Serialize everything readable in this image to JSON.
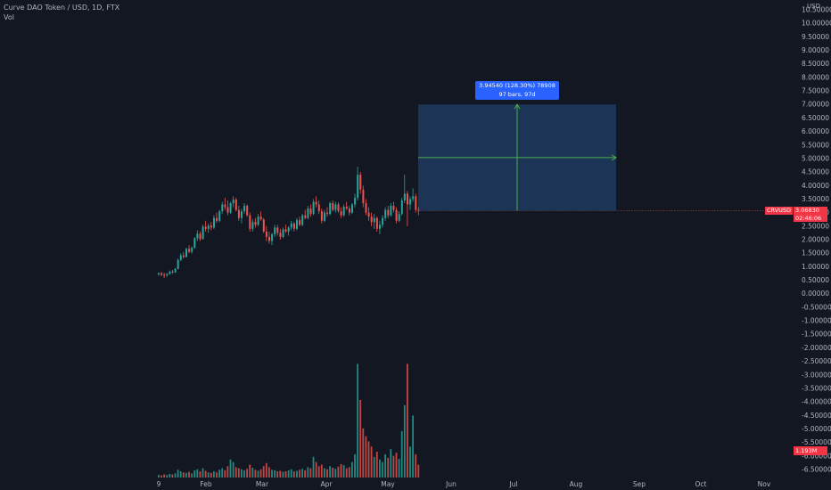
{
  "legend": {
    "title": "Curve DAO Token / USD, 1D, FTX",
    "vol_label": "Vol"
  },
  "axis": {
    "currency": "USD",
    "price_ticks": [
      "10.50000",
      "10.00000",
      "9.50000",
      "9.00000",
      "8.50000",
      "8.00000",
      "7.50000",
      "7.00000",
      "6.50000",
      "6.00000",
      "5.50000",
      "5.00000",
      "4.50000",
      "4.00000",
      "3.50000",
      "3.00000",
      "2.50000",
      "2.00000",
      "1.50000",
      "1.00000",
      "0.50000",
      "0.00000",
      "-0.50000",
      "-1.00000",
      "-1.50000",
      "-2.00000",
      "-2.50000",
      "-3.00000",
      "-3.50000",
      "-4.00000",
      "-4.50000",
      "-5.00000",
      "-5.50000",
      "-6.00000",
      "-6.50000"
    ],
    "time_ticks": [
      "9",
      "Feb",
      "Mar",
      "Apr",
      "May",
      "Jun",
      "Jul",
      "Aug",
      "Sep",
      "Oct",
      "Nov"
    ]
  },
  "price_tag": {
    "symbol": "CRVUSD",
    "price": "3.06830",
    "countdown": "02:46:06"
  },
  "volume_tag": {
    "value": "1.193M"
  },
  "measure_tooltip": {
    "line1": "3.94540 (128.30%) 78908",
    "line2": "97 bars, 97d"
  },
  "colors": {
    "up": "#26a69a",
    "down": "#ef5350",
    "background": "#131722",
    "measure_fill": "#1e3a5f",
    "measure_line": "#4caf50",
    "tooltip": "#2962ff"
  },
  "chart_data": {
    "type": "candlestick",
    "start_date": "2021-01-09",
    "candles": [
      [
        0.72,
        0.79,
        0.66,
        0.76
      ],
      [
        0.76,
        0.8,
        0.65,
        0.7
      ],
      [
        0.7,
        0.78,
        0.58,
        0.68
      ],
      [
        0.68,
        0.77,
        0.62,
        0.73
      ],
      [
        0.73,
        0.86,
        0.7,
        0.82
      ],
      [
        0.82,
        0.88,
        0.74,
        0.79
      ],
      [
        0.79,
        0.95,
        0.77,
        0.92
      ],
      [
        0.92,
        1.3,
        0.9,
        1.25
      ],
      [
        1.25,
        1.5,
        1.2,
        1.42
      ],
      [
        1.42,
        1.55,
        1.3,
        1.36
      ],
      [
        1.36,
        1.7,
        1.34,
        1.66
      ],
      [
        1.66,
        1.8,
        1.5,
        1.55
      ],
      [
        1.55,
        1.75,
        1.48,
        1.7
      ],
      [
        1.7,
        2.1,
        1.66,
        2.05
      ],
      [
        2.05,
        2.35,
        1.95,
        2.22
      ],
      [
        2.22,
        2.3,
        1.95,
        2.02
      ],
      [
        2.02,
        2.55,
        2.0,
        2.48
      ],
      [
        2.48,
        2.7,
        2.3,
        2.4
      ],
      [
        2.4,
        2.6,
        2.25,
        2.52
      ],
      [
        2.52,
        2.65,
        2.35,
        2.45
      ],
      [
        2.45,
        2.9,
        2.4,
        2.8
      ],
      [
        2.8,
        3.0,
        2.62,
        2.7
      ],
      [
        2.7,
        3.1,
        2.65,
        3.05
      ],
      [
        3.05,
        3.4,
        2.95,
        3.3
      ],
      [
        3.3,
        3.55,
        3.1,
        3.2
      ],
      [
        3.2,
        3.45,
        2.9,
        3.0
      ],
      [
        3.0,
        3.4,
        2.95,
        3.35
      ],
      [
        3.35,
        3.6,
        3.2,
        3.48
      ],
      [
        3.48,
        3.55,
        3.05,
        3.1
      ],
      [
        3.1,
        3.25,
        2.7,
        2.8
      ],
      [
        2.8,
        3.15,
        2.6,
        3.05
      ],
      [
        3.05,
        3.35,
        2.95,
        3.25
      ],
      [
        3.25,
        3.3,
        2.85,
        2.9
      ],
      [
        2.9,
        3.0,
        2.3,
        2.4
      ],
      [
        2.4,
        2.75,
        2.3,
        2.65
      ],
      [
        2.65,
        2.8,
        2.45,
        2.55
      ],
      [
        2.55,
        2.95,
        2.5,
        2.85
      ],
      [
        2.85,
        3.05,
        2.7,
        2.75
      ],
      [
        2.75,
        2.8,
        2.25,
        2.3
      ],
      [
        2.3,
        2.5,
        1.95,
        2.1
      ],
      [
        2.1,
        2.3,
        1.85,
        1.95
      ],
      [
        1.95,
        2.25,
        1.8,
        2.2
      ],
      [
        2.2,
        2.55,
        2.1,
        2.45
      ],
      [
        2.45,
        2.55,
        2.15,
        2.25
      ],
      [
        2.25,
        2.4,
        2.0,
        2.1
      ],
      [
        2.1,
        2.45,
        2.05,
        2.38
      ],
      [
        2.38,
        2.55,
        2.25,
        2.3
      ],
      [
        2.3,
        2.5,
        2.15,
        2.45
      ],
      [
        2.45,
        2.7,
        2.35,
        2.6
      ],
      [
        2.6,
        2.65,
        2.3,
        2.4
      ],
      [
        2.4,
        2.8,
        2.35,
        2.72
      ],
      [
        2.72,
        2.85,
        2.5,
        2.55
      ],
      [
        2.55,
        2.95,
        2.5,
        2.9
      ],
      [
        2.9,
        3.1,
        2.75,
        2.8
      ],
      [
        2.8,
        3.25,
        2.75,
        3.15
      ],
      [
        3.15,
        3.3,
        2.85,
        2.95
      ],
      [
        2.95,
        3.5,
        2.9,
        3.4
      ],
      [
        3.4,
        3.6,
        3.2,
        3.3
      ],
      [
        3.3,
        3.45,
        2.95,
        3.05
      ],
      [
        3.05,
        3.15,
        2.6,
        2.7
      ],
      [
        2.7,
        3.1,
        2.65,
        3.0
      ],
      [
        3.0,
        3.2,
        2.85,
        2.95
      ],
      [
        2.95,
        3.4,
        2.9,
        3.35
      ],
      [
        3.35,
        3.45,
        3.05,
        3.1
      ],
      [
        3.1,
        3.4,
        3.0,
        3.3
      ],
      [
        3.3,
        3.38,
        3.0,
        3.05
      ],
      [
        3.05,
        3.2,
        2.8,
        2.9
      ],
      [
        2.9,
        3.3,
        2.85,
        3.22
      ],
      [
        3.22,
        3.4,
        3.1,
        3.15
      ],
      [
        3.15,
        3.25,
        2.9,
        3.0
      ],
      [
        3.0,
        3.35,
        2.95,
        3.3
      ],
      [
        3.3,
        3.7,
        3.2,
        3.55
      ],
      [
        3.55,
        4.7,
        3.45,
        4.4
      ],
      [
        4.4,
        4.5,
        3.7,
        3.85
      ],
      [
        3.85,
        4.0,
        3.2,
        3.35
      ],
      [
        3.35,
        3.5,
        2.9,
        3.0
      ],
      [
        3.0,
        3.2,
        2.7,
        2.85
      ],
      [
        2.85,
        3.0,
        2.5,
        2.65
      ],
      [
        2.65,
        2.95,
        2.4,
        2.8
      ],
      [
        2.8,
        2.85,
        2.3,
        2.4
      ],
      [
        2.4,
        2.7,
        2.2,
        2.55
      ],
      [
        2.55,
        2.9,
        2.45,
        2.8
      ],
      [
        2.8,
        3.2,
        2.7,
        3.1
      ],
      [
        3.1,
        3.25,
        2.8,
        2.9
      ],
      [
        2.9,
        3.35,
        2.85,
        3.25
      ],
      [
        3.25,
        3.4,
        3.0,
        3.1
      ],
      [
        3.1,
        3.2,
        2.6,
        2.7
      ],
      [
        2.7,
        3.05,
        2.65,
        2.95
      ],
      [
        2.95,
        3.55,
        2.9,
        3.45
      ],
      [
        3.45,
        4.4,
        3.35,
        3.7
      ],
      [
        3.7,
        3.8,
        2.5,
        3.3
      ],
      [
        3.3,
        3.6,
        3.1,
        3.5
      ],
      [
        3.5,
        3.9,
        3.4,
        3.6
      ],
      [
        3.6,
        3.7,
        3.0,
        3.1
      ],
      [
        3.1,
        3.2,
        2.9,
        3.07
      ]
    ],
    "volume": [
      0.05,
      0.04,
      0.06,
      0.05,
      0.07,
      0.06,
      0.08,
      0.15,
      0.12,
      0.1,
      0.09,
      0.11,
      0.08,
      0.14,
      0.16,
      0.12,
      0.18,
      0.13,
      0.1,
      0.09,
      0.12,
      0.1,
      0.15,
      0.18,
      0.14,
      0.22,
      0.35,
      0.3,
      0.2,
      0.18,
      0.16,
      0.14,
      0.17,
      0.25,
      0.19,
      0.15,
      0.13,
      0.16,
      0.22,
      0.28,
      0.2,
      0.15,
      0.14,
      0.12,
      0.13,
      0.11,
      0.12,
      0.14,
      0.16,
      0.12,
      0.13,
      0.15,
      0.17,
      0.14,
      0.2,
      0.18,
      0.4,
      0.3,
      0.22,
      0.25,
      0.18,
      0.16,
      0.22,
      0.19,
      0.17,
      0.21,
      0.26,
      0.24,
      0.18,
      0.2,
      0.3,
      0.45,
      2.2,
      1.5,
      0.95,
      0.8,
      0.7,
      0.6,
      0.4,
      0.5,
      0.35,
      0.3,
      0.45,
      0.38,
      0.55,
      0.42,
      0.48,
      0.36,
      0.9,
      1.4,
      2.2,
      0.6,
      1.2,
      0.45,
      0.25
    ],
    "ylim": [
      -6.5,
      10.5
    ],
    "measure": {
      "from_price": 3.07,
      "to_price": 7.0,
      "from_bar": 95,
      "to_bar": 192
    }
  }
}
